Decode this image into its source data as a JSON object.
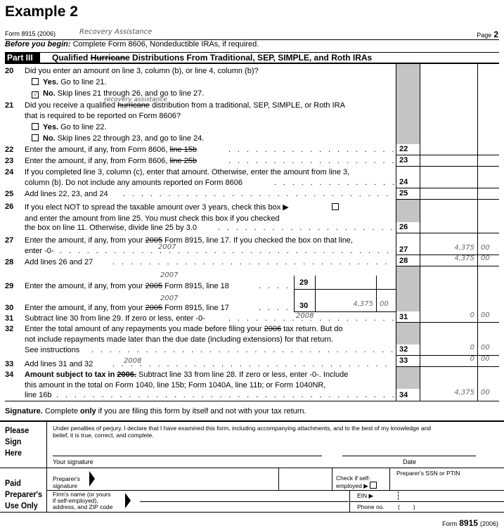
{
  "title": "Example 2",
  "header": {
    "form": "Form 8915 (2006)",
    "handwritten": "Recovery Assistance",
    "page_label": "Page",
    "page_num": "2"
  },
  "before": {
    "bold": "Before you begin:",
    "text": " Complete Form 8606, Nondeductible IRAs, if required."
  },
  "part": {
    "label": "Part III",
    "t1": "Qualified ",
    "strike": "Hurricane",
    "t2": " Distributions From Traditional, SEP, SIMPLE, and Roth IRAs"
  },
  "l20": {
    "num": "20",
    "text": "Did you enter an amount on line 3, column (b), or line 4, column (b)?",
    "yes_b": "Yes.",
    "yes": " Go to line 21.",
    "no_b": "No.",
    "no": " Skip lines 21 through 26, and go to line 27.",
    "yes_checked": false,
    "no_checked": true,
    "check": "√"
  },
  "l21": {
    "num": "21",
    "t1": "Did you receive a qualified ",
    "strike": "hurricane",
    "t2": " distribution from a traditional, SEP, SIMPLE, or Roth IRA",
    "t3": "that is required to be reported on Form 8606?",
    "hand": "recovery assistance",
    "yes_b": "Yes.",
    "yes": " Go to line 22.",
    "no_b": "No.",
    "no": " Skip lines 22 through 23, and go to line 24."
  },
  "l22": {
    "num": "22",
    "text": "Enter the amount, if any, from Form 8606, ",
    "strike": "line 15b"
  },
  "l23": {
    "num": "23",
    "text": "Enter the amount, if any, from Form 8606, ",
    "strike": "line 25b"
  },
  "l24": {
    "num": "24",
    "t1": "If you completed line 3, column (c), enter that amount. Otherwise, enter the amount from line 3,",
    "t2": "column (b). Do not include any amounts reported on Form 8606"
  },
  "l25": {
    "num": "25",
    "text": "Add lines 22, 23, and 24"
  },
  "l26": {
    "num": "26",
    "t1": "If you elect NOT to spread the taxable amount over 3 years, check this box ▶",
    "t2": "and enter the amount from line 25. You must check this box if you checked",
    "t3": "the box on line 11. Otherwise, divide line 25 by 3.0"
  },
  "l27": {
    "num": "27",
    "t1": "Enter the amount, if any, from your ",
    "strike": "2005",
    "t2": " Form 8915, line 17. If you checked the box on that line,",
    "t3": "enter -0-",
    "hand": "2007",
    "amount": "4,375",
    "cents": "00"
  },
  "l28": {
    "num": "28",
    "text": "Add lines 26 and 27",
    "amount": "4,375",
    "cents": "00"
  },
  "l29": {
    "num": "29",
    "t1": "Enter the amount, if any, from your ",
    "strike": "2005",
    "t2": " Form 8915, line 18",
    "hand": "2007"
  },
  "l30": {
    "num": "30",
    "t1": "Enter the amount, if any, from your ",
    "strike": "2005",
    "t2": " Form 8915, line 17",
    "hand": "2007",
    "amount": "4,375",
    "cents": "00"
  },
  "l31": {
    "num": "31",
    "text": "Subtract line 30 from line 29. If zero or less, enter -0-",
    "hand": "2008",
    "amount": "0",
    "cents": "00"
  },
  "l32": {
    "num": "32",
    "t1": "Enter the total amount of any repayments you made before filing your ",
    "strike": "2006",
    "t2": " tax return. But do",
    "t3": "not include repayments made later than the due date (including extensions) for that return.",
    "t4": "See instructions",
    "amount": "0",
    "cents": "00"
  },
  "l33": {
    "num": "33",
    "text": "Add lines 31 and 32",
    "hand": "2008",
    "amount": "0",
    "cents": "00"
  },
  "l34": {
    "num": "34",
    "b1": "Amount subject to tax in ",
    "strike": "2006.",
    "t1": " Subtract line 33 from line 28. If zero or less, enter -0-. Include",
    "t2": "this amount in the total on Form 1040, line 15b; Form 1040A, line 11b; or Form 1040NR,",
    "t3": "line 16b",
    "amount": "4,375",
    "cents": "00"
  },
  "signature": {
    "bold": "Signature.",
    "t1": " Complete ",
    "only": "only",
    "t2": " if you are filing this form by itself and not with your tax return.",
    "sign_here": [
      "Please",
      "Sign",
      "Here"
    ],
    "perjury1": "Under penalties of perjury, I declare that I have examined this form, including accompanying attachments, and to the best of my knowledge and",
    "perjury2": "belief, it is true, correct, and complete.",
    "your_signature": "Your signature",
    "date": "Date"
  },
  "preparer": {
    "heading": [
      "Paid",
      "Preparer's",
      "Use Only"
    ],
    "sig1": "Preparer's",
    "sig2": "signature",
    "check1": "Check if self-",
    "check2": "employed ▶",
    "ssn": "Preparer's SSN or PTIN",
    "firm1": "Firm's name (or yours",
    "firm2": "if self-employed),",
    "firm3": "address, and ZIP code",
    "ein": "EIN ▶",
    "phone": "Phone no.",
    "phone_paren": "(        )"
  },
  "footer": {
    "form": "Form",
    "num": "8915",
    "year": "(2006)"
  }
}
